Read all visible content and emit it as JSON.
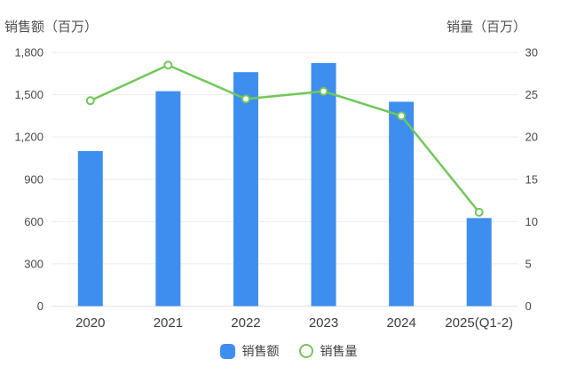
{
  "colors": {
    "bar": "#3E8EF0",
    "line": "#70C858",
    "grid": "#EBEBEB",
    "axis_line": "#E2E2E2",
    "tick_text": "#4A4A4A",
    "x_text": "#3D3D3D",
    "title_text": "#4F4F4F",
    "legend_text": "#404040",
    "marker_fill": "#FFFFFF"
  },
  "chart_data": {
    "type": "bar",
    "subtype": "bar+line dual axis combo",
    "categories": [
      "2020",
      "2021",
      "2022",
      "2023",
      "2024",
      "2025(Q1-2)"
    ],
    "series": [
      {
        "name": "销售额",
        "type": "bar",
        "yaxis": "left",
        "values": [
          1100,
          1525,
          1660,
          1725,
          1450,
          625
        ]
      },
      {
        "name": "销售量",
        "type": "line",
        "yaxis": "right",
        "values": [
          24.3,
          28.5,
          24.5,
          25.4,
          22.5,
          11.1
        ]
      }
    ],
    "left_axis": {
      "title": "销售额（百万）",
      "min": 0,
      "max": 1800,
      "ticks": [
        {
          "value": 0,
          "label": "0"
        },
        {
          "value": 300,
          "label": "300"
        },
        {
          "value": 600,
          "label": "600"
        },
        {
          "value": 900,
          "label": "900"
        },
        {
          "value": 1200,
          "label": "1,200"
        },
        {
          "value": 1500,
          "label": "1,500"
        },
        {
          "value": 1800,
          "label": "1,800"
        }
      ]
    },
    "right_axis": {
      "title": "销量（百万）",
      "min": 0,
      "max": 30,
      "ticks": [
        {
          "value": 0,
          "label": "0"
        },
        {
          "value": 5,
          "label": "5"
        },
        {
          "value": 10,
          "label": "10"
        },
        {
          "value": 15,
          "label": "15"
        },
        {
          "value": 20,
          "label": "20"
        },
        {
          "value": 25,
          "label": "25"
        },
        {
          "value": 30,
          "label": "30"
        }
      ]
    },
    "legend": {
      "position": "bottom",
      "items": [
        "销售额",
        "销售量"
      ]
    },
    "grid": true
  }
}
